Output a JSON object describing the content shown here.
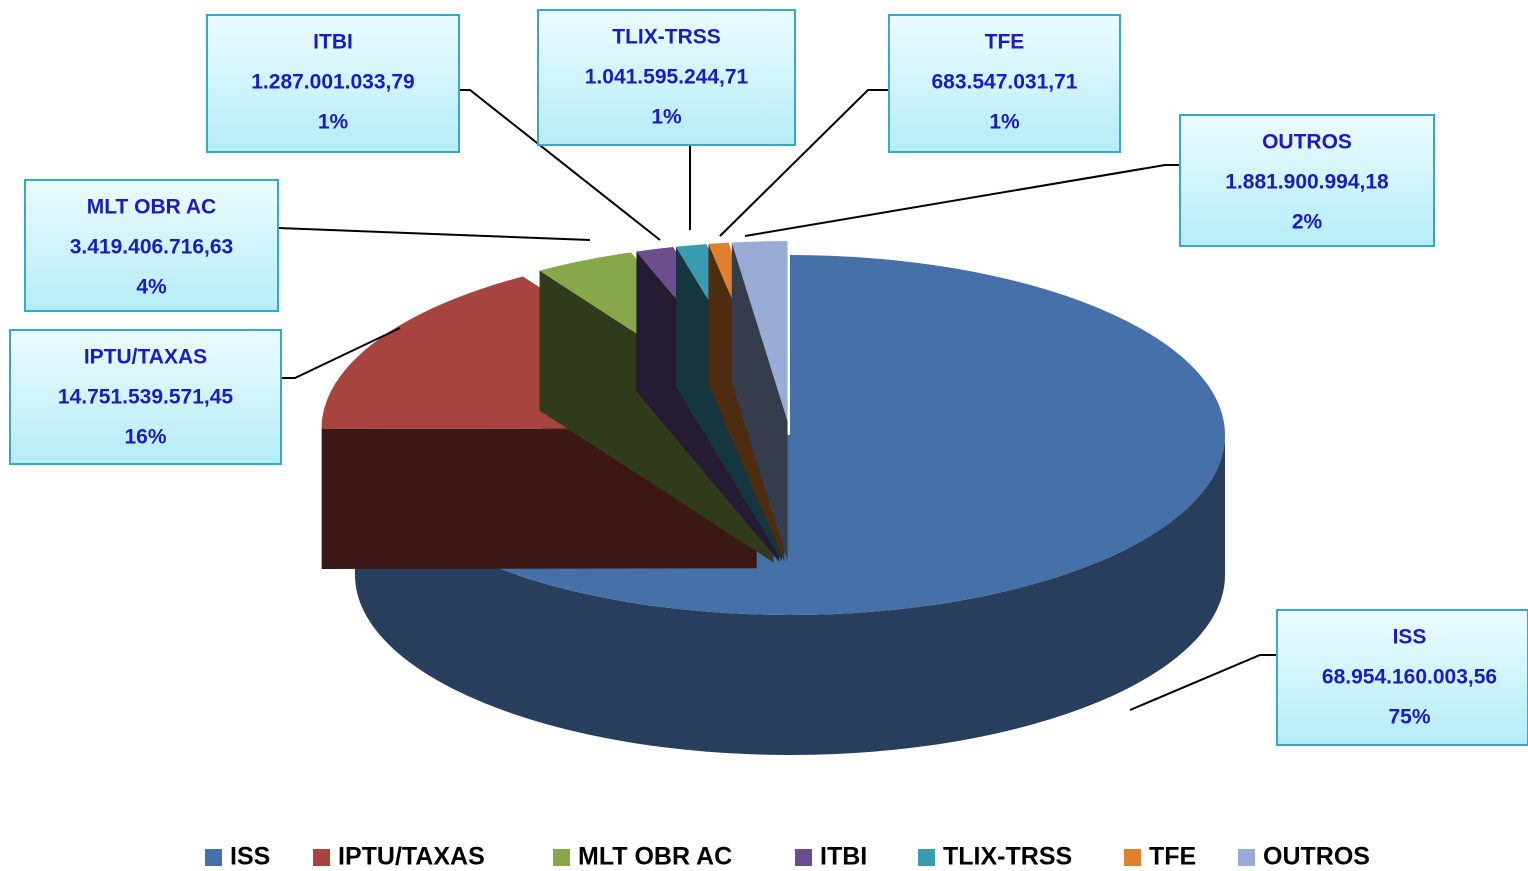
{
  "chart_data": {
    "type": "pie3d",
    "categories": [
      "ISS",
      "IPTU/TAXAS",
      "MLT OBR AC",
      "ITBI",
      "TLIX-TRSS",
      "TFE",
      "OUTROS"
    ],
    "values": [
      68954160003.56,
      14751539571.45,
      3419406716.63,
      1287001033.79,
      1041595244.71,
      683547031.71,
      1881900994.18
    ],
    "value_labels": [
      "68.954.160.003,56",
      "14.751.539.571,45",
      "3.419.406.716,63",
      "1.287.001.033,79",
      "1.041.595.244,71",
      "683.547.031,71",
      "1.881.900.994,18"
    ],
    "percent_labels": [
      "75%",
      "16%",
      "4%",
      "1%",
      "1%",
      "1%",
      "2%"
    ],
    "colors": [
      "#4670a8",
      "#a84440",
      "#86a84a",
      "#6a4e8e",
      "#3b9bb0",
      "#e07f2c",
      "#98acd6"
    ],
    "legend": "bottom"
  }
}
